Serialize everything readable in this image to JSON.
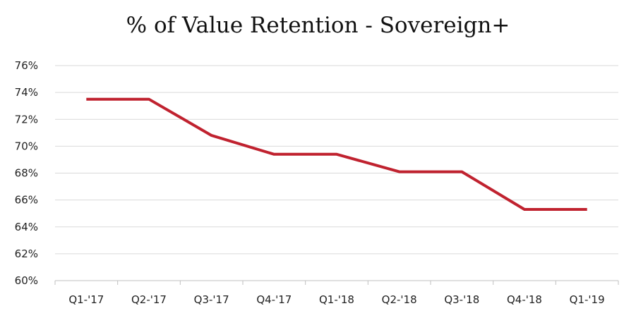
{
  "chart_data": {
    "type": "line",
    "title": "% of Value Retention - Sovereign+",
    "xlabel": "",
    "ylabel": "",
    "categories": [
      "Q1-'17",
      "Q2-'17",
      "Q3-'17",
      "Q4-'17",
      "Q1-'18",
      "Q2-'18",
      "Q3-'18",
      "Q4-'18",
      "Q1-'19"
    ],
    "series": [
      {
        "values": [
          73.5,
          73.5,
          70.8,
          69.4,
          69.4,
          68.1,
          68.1,
          65.3,
          65.3
        ],
        "color": "#c0222f"
      }
    ],
    "ylim": [
      60,
      76
    ],
    "yticks": [
      60,
      62,
      64,
      66,
      68,
      70,
      72,
      74,
      76
    ],
    "ytick_labels": [
      "60%",
      "62%",
      "64%",
      "66%",
      "68%",
      "70%",
      "72%",
      "74%",
      "76%"
    ],
    "grid": true,
    "legend": "none"
  }
}
